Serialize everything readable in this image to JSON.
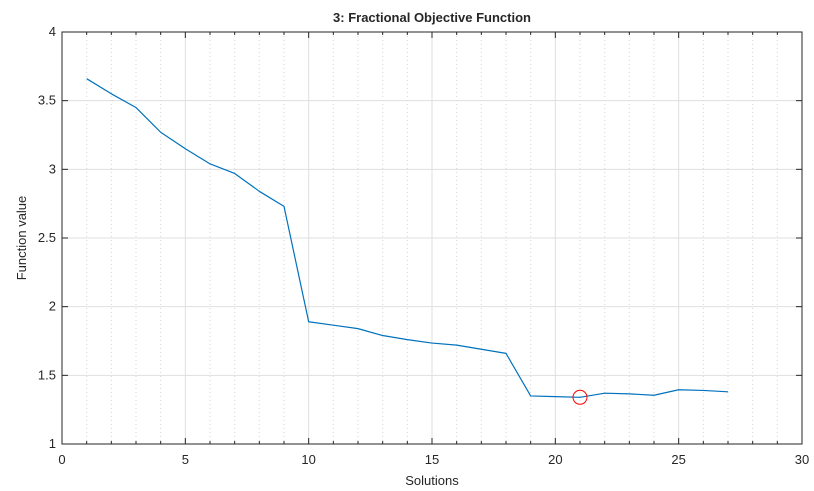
{
  "chart_data": {
    "type": "line",
    "title": "3: Fractional Objective Function",
    "xlabel": "Solutions",
    "ylabel": "Function value",
    "xlim": [
      0,
      30
    ],
    "ylim": [
      1,
      4
    ],
    "xticks": [
      0,
      5,
      10,
      15,
      20,
      25,
      30
    ],
    "yticks": [
      1,
      1.5,
      2,
      2.5,
      3,
      3.5,
      4
    ],
    "x_minor_step": 1,
    "grid": true,
    "series": [
      {
        "x": [
          1,
          2,
          3,
          4,
          5,
          6,
          7,
          8,
          9,
          10,
          11,
          12,
          13,
          14,
          15,
          16,
          17,
          18,
          19,
          20,
          21,
          22,
          23,
          24,
          25,
          26,
          27
        ],
        "values": [
          3.66,
          3.55,
          3.45,
          3.27,
          3.15,
          3.04,
          2.97,
          2.84,
          2.73,
          1.89,
          1.865,
          1.84,
          1.79,
          1.76,
          1.735,
          1.72,
          1.69,
          1.66,
          1.35,
          1.345,
          1.34,
          1.37,
          1.365,
          1.355,
          1.395,
          1.39,
          1.38
        ],
        "color": "#0072BD"
      }
    ],
    "highlight": {
      "x": 21,
      "y": 1.34,
      "marker": "circle",
      "color": "#FF0000"
    }
  },
  "colors": {
    "axis": "#262626",
    "major_grid": "#dfdfdf",
    "minor_grid": "#d6d6d6",
    "line": "#0072BD",
    "highlight": "#FF0000"
  }
}
